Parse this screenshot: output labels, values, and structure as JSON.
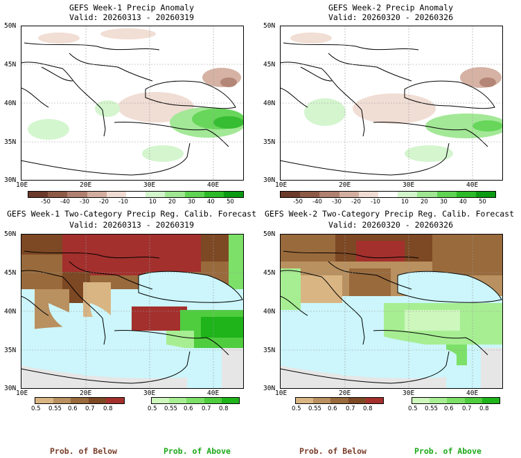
{
  "panels": [
    {
      "title": "GEFS Week-1 Precip Anomaly",
      "valid": "Valid: 20260313 - 20260319"
    },
    {
      "title": "GEFS Week-2 Precip Anomaly",
      "valid": "Valid: 20260320 - 20260326"
    },
    {
      "title": "GEFS Week-1 Two-Category Precip Reg. Calib. Forecast",
      "valid": "Valid: 20260313 - 20260319"
    },
    {
      "title": "GEFS Week-2 Two-Category Precip Reg. Calib. Forecast",
      "valid": "Valid: 20260320 - 20260326"
    }
  ],
  "axes": {
    "lat_labels": [
      "50N",
      "45N",
      "40N",
      "35N",
      "30N"
    ],
    "lon_labels": [
      "10E",
      "20E",
      "30E",
      "40E"
    ]
  },
  "anomaly_colorbar": {
    "labels": [
      "-50",
      "-40",
      "-30",
      "-20",
      "-10",
      "10",
      "20",
      "30",
      "40",
      "50"
    ],
    "colors": [
      "#6b3a2a",
      "#8d5a45",
      "#b08070",
      "#d3aea0",
      "#f0dcd2",
      "#ffffff",
      "#d2f5cc",
      "#9fe792",
      "#5fd452",
      "#2dba28",
      "#0b9a12"
    ]
  },
  "prob_below_colorbar": {
    "labels": [
      "0.5",
      "0.55",
      "0.6",
      "0.7",
      "0.8"
    ],
    "colors": [
      "#d9b584",
      "#b9905f",
      "#996a3c",
      "#7d4824",
      "#a3302d"
    ]
  },
  "prob_above_colorbar": {
    "labels": [
      "0.5",
      "0.55",
      "0.6",
      "0.7",
      "0.8"
    ],
    "colors": [
      "#cdf7bd",
      "#a7ee93",
      "#7ce069",
      "#4fcd3f",
      "#1eb41a"
    ]
  },
  "footer": {
    "below_left": "Prob. of Below",
    "above_left": "Prob. of Above",
    "below_right": "Prob. of Below",
    "above_right": "Prob. of Above"
  },
  "colors": {
    "below": "#7a3d2a",
    "above": "#1ea81a",
    "sea": "#ccf6fb",
    "nodata": "#e6e6e6"
  }
}
